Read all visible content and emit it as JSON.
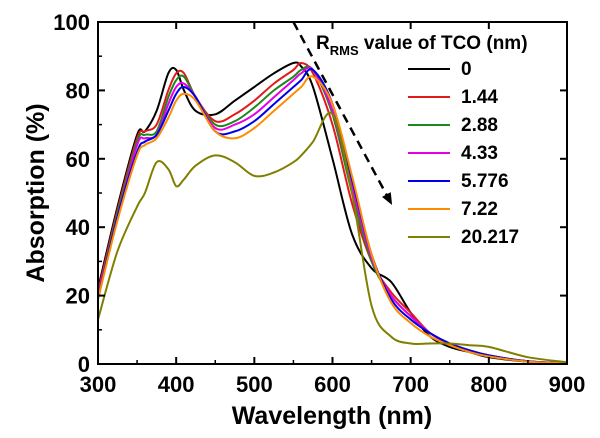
{
  "chart_data": {
    "type": "line",
    "title": "",
    "xlabel": "Wavelength (nm)",
    "ylabel": "Absorption (%)",
    "xlim": [
      300,
      900
    ],
    "ylim": [
      0,
      100
    ],
    "xticks": [
      300,
      400,
      500,
      600,
      700,
      800,
      900
    ],
    "yticks": [
      0,
      20,
      40,
      60,
      80,
      100
    ],
    "grid": false,
    "legend": {
      "placement": "top-right",
      "title_main": "R",
      "title_sub": "RMS",
      "title_rest": " value of TCO (nm)"
    },
    "x": [
      300,
      325,
      350,
      360,
      375,
      390,
      400,
      410,
      425,
      450,
      475,
      500,
      525,
      550,
      560,
      575,
      600,
      625,
      650,
      675,
      700,
      725,
      750,
      775,
      800,
      850,
      900
    ],
    "series": [
      {
        "name": "0",
        "color": "#000000",
        "values": [
          22,
          46,
          67,
          68,
          74,
          85,
          86,
          80,
          74,
          73,
          77,
          81,
          85,
          88,
          87,
          81,
          60,
          38,
          28,
          24,
          15,
          8,
          5,
          3.5,
          2,
          0.7,
          0.2
        ]
      },
      {
        "name": "1.44",
        "color": "#e31a1c",
        "values": [
          21,
          45,
          66,
          68,
          70,
          80,
          85,
          85,
          78,
          71,
          73,
          77,
          82,
          86,
          88,
          85,
          70,
          47,
          30,
          21,
          15,
          9,
          6,
          4,
          2.5,
          0.8,
          0.2
        ]
      },
      {
        "name": "2.88",
        "color": "#1a8a1a",
        "values": [
          20,
          44,
          65,
          67,
          68,
          78,
          83,
          84,
          78,
          70,
          71,
          75,
          80,
          84,
          86,
          86,
          73,
          50,
          30,
          20,
          14,
          9,
          6,
          4,
          2.5,
          0.8,
          0.2
        ]
      },
      {
        "name": "4.33",
        "color": "#e600e6",
        "values": [
          20,
          43,
          64,
          66,
          67,
          76,
          81,
          82,
          78,
          69,
          70,
          73,
          78,
          83,
          85,
          86,
          74,
          52,
          31,
          20,
          14,
          9,
          6,
          4,
          2.5,
          0.8,
          0.2
        ]
      },
      {
        "name": "5.776",
        "color": "#0000e6",
        "values": [
          19,
          43,
          62,
          65,
          67,
          74,
          79,
          81,
          78,
          68,
          68,
          71,
          76,
          81,
          83,
          86,
          76,
          54,
          32,
          19,
          13,
          9,
          6,
          4,
          2.5,
          0.8,
          0.2
        ]
      },
      {
        "name": "7.22",
        "color": "#ff8c00",
        "values": [
          19,
          42,
          61,
          64,
          66,
          72,
          77,
          79,
          77,
          68,
          66,
          69,
          74,
          79,
          81,
          84,
          76,
          55,
          32,
          18,
          12,
          8,
          5.5,
          3.5,
          2.2,
          0.7,
          0.2
        ]
      },
      {
        "name": "20.217",
        "color": "#808000",
        "values": [
          13,
          33,
          46,
          50,
          59,
          57,
          52,
          54,
          58,
          61,
          59,
          55,
          56,
          59,
          61,
          65,
          73,
          50,
          17,
          8,
          6,
          6,
          6,
          5.5,
          5,
          2,
          0.5
        ]
      }
    ],
    "annotations": [
      {
        "type": "dashed-arrow",
        "from": [
          550,
          100
        ],
        "to": [
          675,
          47
        ]
      }
    ]
  }
}
